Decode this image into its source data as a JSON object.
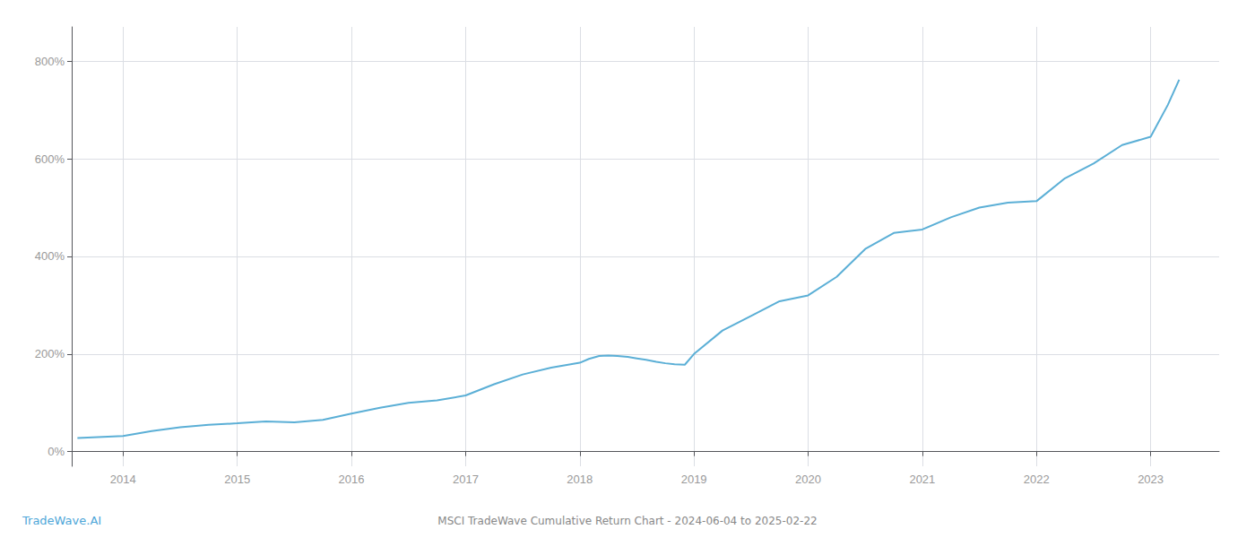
{
  "chart_data": {
    "type": "line",
    "title": "MSCI TradeWave Cumulative Return Chart - 2024-06-04 to 2025-02-22",
    "annotations": [
      "TradeWave.AI"
    ],
    "x": [
      2013.6,
      2014.0,
      2014.25,
      2014.5,
      2014.75,
      2015.0,
      2015.25,
      2015.5,
      2015.75,
      2016.0,
      2016.25,
      2016.5,
      2016.75,
      2017.0,
      2017.25,
      2017.5,
      2017.75,
      2018.0,
      2018.08,
      2018.17,
      2018.25,
      2018.33,
      2018.42,
      2018.5,
      2018.58,
      2018.67,
      2018.75,
      2018.83,
      2018.92,
      2019.0,
      2019.25,
      2019.5,
      2019.75,
      2020.0,
      2020.25,
      2020.5,
      2020.75,
      2021.0,
      2021.25,
      2021.5,
      2021.75,
      2022.0,
      2022.25,
      2022.5,
      2022.75,
      2023.0,
      2023.15,
      2023.25
    ],
    "values": [
      28,
      32,
      42,
      50,
      55,
      58,
      62,
      60,
      65,
      78,
      90,
      100,
      105,
      115,
      138,
      158,
      172,
      182,
      190,
      196,
      197,
      196,
      194,
      191,
      188,
      184,
      181,
      179,
      178,
      200,
      248,
      278,
      308,
      320,
      358,
      415,
      448,
      455,
      480,
      500,
      510,
      513,
      560,
      590,
      628,
      645,
      710,
      762
    ],
    "color": "#5bafd6",
    "xlim": [
      2013.55,
      2023.6
    ],
    "ylim": [
      -30,
      870
    ],
    "xticks": [
      2014,
      2015,
      2016,
      2017,
      2018,
      2019,
      2020,
      2021,
      2022,
      2023
    ],
    "yticks": [
      {
        "value": 0,
        "label": "0%"
      },
      {
        "value": 200,
        "label": "200%"
      },
      {
        "value": 400,
        "label": "400%"
      },
      {
        "value": 600,
        "label": "600%"
      },
      {
        "value": 800,
        "label": "800%"
      }
    ],
    "grid": true
  }
}
